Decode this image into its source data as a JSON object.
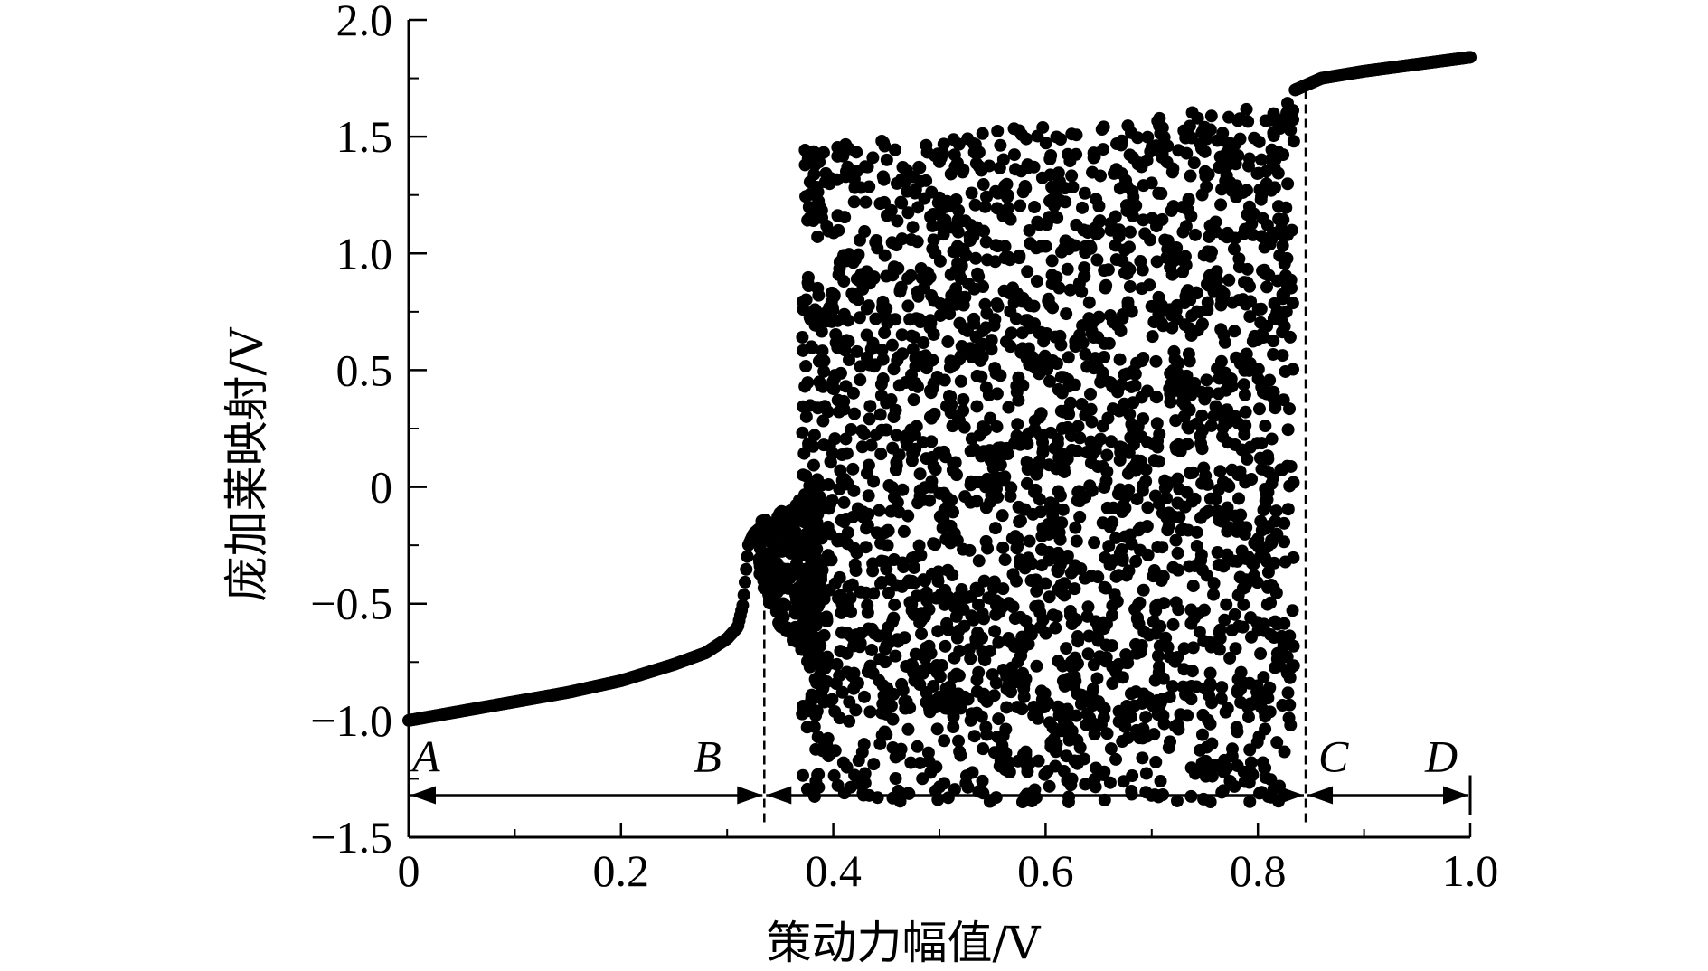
{
  "chart_data": {
    "type": "scatter",
    "xlabel": "策动力幅值/V",
    "ylabel": "庞加莱映射/V",
    "xlim": [
      0,
      1.0
    ],
    "ylim": [
      -1.5,
      2.0
    ],
    "xticks": [
      "0",
      "0.2",
      "0.4",
      "0.6",
      "0.8",
      "1.0"
    ],
    "yticks": [
      "−1.5",
      "−1.0",
      "−0.5",
      "0",
      "0.5",
      "1.0",
      "1.5",
      "2.0"
    ],
    "xtick_values": [
      0,
      0.2,
      0.4,
      0.6,
      0.8,
      1.0
    ],
    "ytick_values": [
      -1.5,
      -1.0,
      -0.5,
      0,
      0.5,
      1.0,
      1.5,
      2.0
    ],
    "grid": false,
    "marker_color": "#000000",
    "series": [
      {
        "kind": "periodic-branch",
        "x": [
          0.0,
          0.05,
          0.1,
          0.15,
          0.2,
          0.25,
          0.28,
          0.3,
          0.31,
          0.315,
          0.318,
          0.32,
          0.325,
          0.33
        ],
        "y": [
          -1.0,
          -0.96,
          -0.92,
          -0.88,
          -0.83,
          -0.76,
          -0.71,
          -0.65,
          -0.6,
          -0.5,
          -0.35,
          -0.25,
          -0.2,
          -0.18
        ]
      },
      {
        "kind": "transition-band",
        "x": [
          0.33,
          0.35,
          0.37,
          0.39
        ],
        "y_min": [
          -0.4,
          -0.6,
          -0.7,
          -0.8
        ],
        "y_max": [
          -0.15,
          -0.1,
          -0.05,
          0.1
        ]
      },
      {
        "kind": "chaotic-band",
        "x_range": [
          0.37,
          0.835
        ],
        "y_min": -1.35,
        "y_max_start": 1.45,
        "y_max_end": 1.65
      },
      {
        "kind": "periodic-branch",
        "x": [
          0.835,
          0.845,
          0.86,
          0.9,
          0.95,
          1.0
        ],
        "y": [
          1.7,
          1.72,
          1.75,
          1.78,
          1.81,
          1.84
        ]
      }
    ],
    "annotations": [
      {
        "label": "A",
        "x": 0.0
      },
      {
        "label": "B",
        "x": 0.335
      },
      {
        "label": "C",
        "x": 0.845
      },
      {
        "label": "D",
        "x": 1.0
      }
    ],
    "region_boundaries": [
      0.335,
      0.845
    ],
    "arrow_y": -1.32
  }
}
